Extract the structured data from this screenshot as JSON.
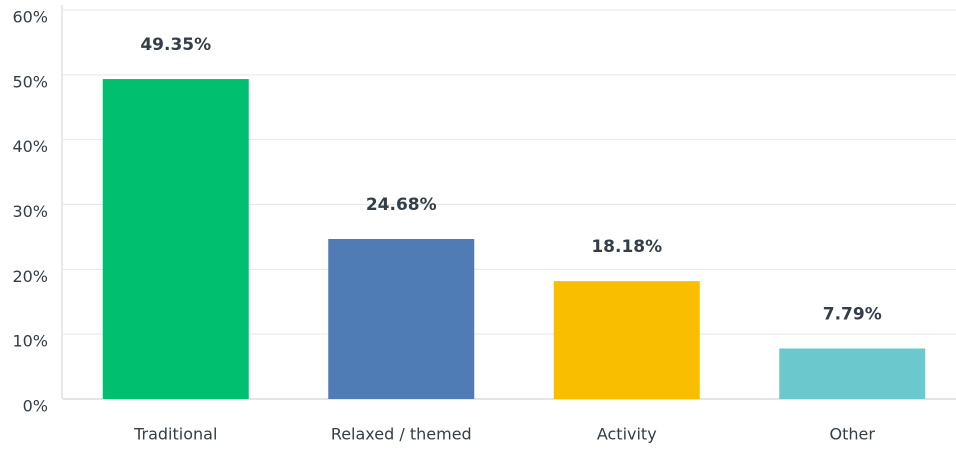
{
  "chart_data": {
    "type": "bar",
    "categories": [
      "Traditional",
      "Relaxed / themed",
      "Activity",
      "Other"
    ],
    "values": [
      49.35,
      24.68,
      18.18,
      7.79
    ],
    "value_labels": [
      "49.35%",
      "24.68%",
      "18.18%",
      "7.79%"
    ],
    "colors": [
      "#00bf6f",
      "#507cb6",
      "#f9be00",
      "#6bc8cd"
    ],
    "ylim": [
      0,
      60
    ],
    "yticks": [
      {
        "value": 0,
        "label": "0%"
      },
      {
        "value": 10,
        "label": "10%"
      },
      {
        "value": 20,
        "label": "20%"
      },
      {
        "value": 30,
        "label": "30%"
      },
      {
        "value": 40,
        "label": "40%"
      },
      {
        "value": 50,
        "label": "50%"
      },
      {
        "value": 60,
        "label": "60%"
      }
    ],
    "grid": true
  }
}
